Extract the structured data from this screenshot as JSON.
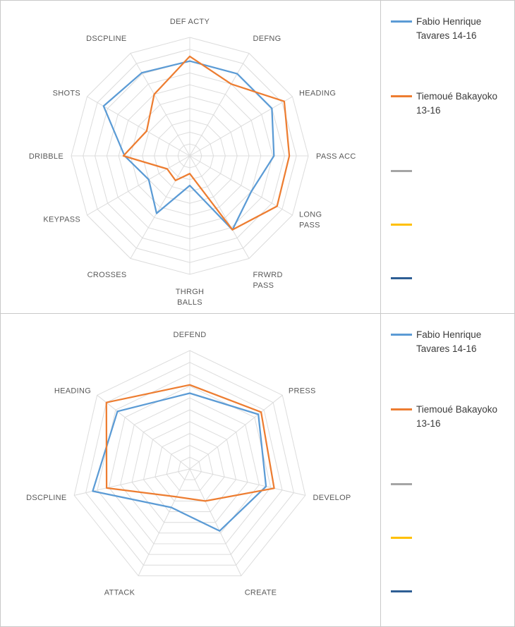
{
  "legend": {
    "items": [
      {
        "label": "Fabio Henrique Tavares 14-16",
        "color": "#5B9BD5"
      },
      {
        "label": "Tiemoué Bakayoko 13-16",
        "color": "#ED7D31"
      },
      {
        "label": "",
        "color": "#A5A5A5"
      },
      {
        "label": "",
        "color": "#FFC000"
      },
      {
        "label": "",
        "color": "#2E5E94"
      }
    ]
  },
  "style": {
    "grid_color": "#DCDCDC",
    "label_color": "#595959",
    "series_stroke_width": 2.25
  },
  "chart_data": [
    {
      "type": "radar",
      "title": "",
      "legend_position": "right",
      "grid": true,
      "rings": 10,
      "max": 10,
      "categories": [
        "DEF ACTY",
        "DEFNG",
        "HEADING",
        "PASS ACC",
        "LONG\nPASS",
        "FRWRD\nPASS",
        "THRGH\nBALLS",
        "CROSSES",
        "KEYPASS",
        "DRIBBLE",
        "SHOTS",
        "DSCPLINE"
      ],
      "series": [
        {
          "name": "Fabio Henrique Tavares 14-16",
          "color": "#5B9BD5",
          "values": [
            8.0,
            8.0,
            8.0,
            7.1,
            6.0,
            7.2,
            2.5,
            5.6,
            4.0,
            5.5,
            8.4,
            8.1
          ]
        },
        {
          "name": "Tiemoué Bakayoko 13-16",
          "color": "#ED7D31",
          "values": [
            8.4,
            7.0,
            9.2,
            8.4,
            8.5,
            7.2,
            1.5,
            2.4,
            2.2,
            5.6,
            4.2,
            6.0
          ]
        }
      ]
    },
    {
      "type": "radar",
      "title": "",
      "legend_position": "right",
      "grid": true,
      "rings": 10,
      "max": 10,
      "categories": [
        "DEFEND",
        "PRESS",
        "DEVELOP",
        "CREATE",
        "ATTACK",
        "DSCPLINE",
        "HEADING"
      ],
      "series": [
        {
          "name": "Fabio Henrique Tavares 14-16",
          "color": "#5B9BD5",
          "values": [
            6.4,
            7.4,
            6.6,
            5.8,
            3.6,
            8.4,
            7.8
          ]
        },
        {
          "name": "Tiemoué Bakayoko 13-16",
          "color": "#ED7D31",
          "values": [
            7.1,
            7.7,
            7.3,
            3.0,
            2.6,
            7.2,
            9.0
          ]
        }
      ]
    }
  ]
}
